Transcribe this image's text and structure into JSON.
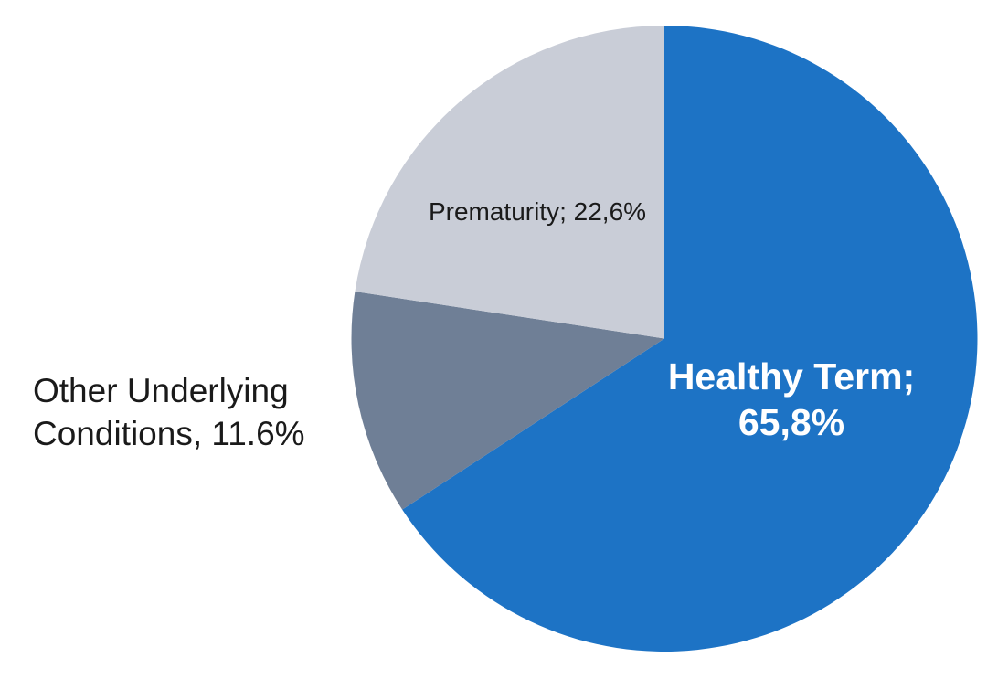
{
  "chart_data": {
    "type": "pie",
    "title": "",
    "start_angle_deg": 0,
    "direction": "clockwise",
    "legend": "none",
    "data_labels": "on-slice-and-outside",
    "slices": [
      {
        "id": "healthy-term",
        "name": "Healthy Term",
        "value": 65.8,
        "display_value": "65,8%",
        "color": "#1D73C5"
      },
      {
        "id": "other-underlying-conditions",
        "name": "Other Underlying Conditions",
        "value": 11.6,
        "display_value": "11.6%",
        "color": "#6F7F96"
      },
      {
        "id": "prematurity",
        "name": "Prematurity",
        "value": 22.6,
        "display_value": "22,6%",
        "color": "#C9CDD7"
      }
    ],
    "colors": {
      "background": "#ffffff",
      "label_dark": "#1a1a1a",
      "label_light": "#ffffff"
    }
  },
  "labels": {
    "prematurity": {
      "text": "Prematurity; 22,6%"
    },
    "healthy_term": {
      "line1": "Healthy Term;",
      "line2": "65,8%"
    },
    "other": {
      "line1": "Other Underlying",
      "line2": "Conditions, 11.6%"
    }
  }
}
